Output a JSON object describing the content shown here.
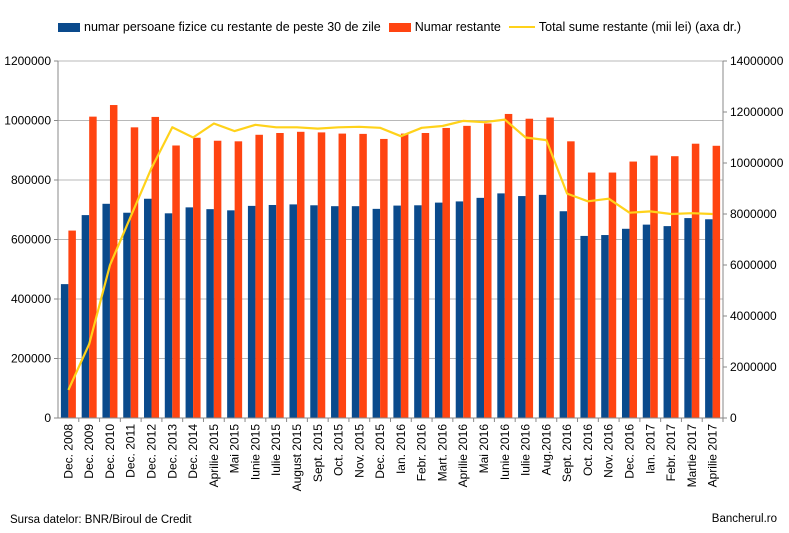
{
  "legend": {
    "series1": "numar persoane fizice cu restante de peste 30 de zile",
    "series2": "Numar restante",
    "series3": "Total sume restante (mii lei) (axa dr.)"
  },
  "footer": {
    "source": "Sursa datelor: BNR/Biroul de Credit",
    "brand": "Bancherul.ro"
  },
  "colors": {
    "series1": "#0a4a8c",
    "series2": "#ff4411",
    "series3": "#ffd21a",
    "grid": "#b8b8b8"
  },
  "chart_data": {
    "type": "bar",
    "grid": true,
    "legend_position": "top",
    "categories": [
      "Dec. 2008",
      "Dec. 2009",
      "Dec. 2010",
      "Dec. 2011",
      "Dec. 2012",
      "Dec. 2013",
      "Dec. 2014",
      "Aprilie 2015",
      "Mai 2015",
      "Iunie 2015",
      "Iulie 2015",
      "August 2015",
      "Sept. 2015",
      "Oct. 2015",
      "Nov. 2015",
      "Dec. 2015",
      "Ian. 2016",
      "Febr. 2016",
      "Mart. 2016",
      "Aprilie 2016",
      "Mai 2016",
      "Iunie 2016",
      "Iulie 2016",
      "Aug.2016",
      "Sept. 2016",
      "Oct. 2016",
      "Nov. 2016",
      "Dec. 2016",
      "Ian. 2017",
      "Febr. 2017",
      "Martie 2017",
      "Aprilie 2017"
    ],
    "ylim_left": [
      0,
      1200000
    ],
    "yticks_left": [
      0,
      200000,
      400000,
      600000,
      800000,
      1000000,
      1200000
    ],
    "ylim_right": [
      0,
      14000000
    ],
    "yticks_right": [
      0,
      2000000,
      4000000,
      6000000,
      8000000,
      10000000,
      12000000,
      14000000
    ],
    "series": [
      {
        "name": "numar persoane fizice cu restante de peste 30 de zile",
        "type": "bar",
        "axis": "left",
        "values": [
          450000,
          682000,
          720000,
          690000,
          737000,
          688000,
          708000,
          702000,
          698000,
          713000,
          716000,
          718000,
          715000,
          712000,
          712000,
          703000,
          714000,
          715000,
          724000,
          728000,
          740000,
          755000,
          746000,
          750000,
          695000,
          612000,
          615000,
          636000,
          650000,
          645000,
          672000,
          668000
        ]
      },
      {
        "name": "Numar restante",
        "type": "bar",
        "axis": "left",
        "values": [
          630000,
          1013000,
          1052000,
          977000,
          1012000,
          916000,
          942000,
          932000,
          930000,
          952000,
          958000,
          962000,
          960000,
          956000,
          955000,
          938000,
          956000,
          958000,
          975000,
          982000,
          990000,
          1022000,
          1006000,
          1010000,
          930000,
          825000,
          825000,
          862000,
          882000,
          880000,
          922000,
          915000
        ]
      },
      {
        "name": "Total sume restante (mii lei) (axa dr.)",
        "type": "line",
        "axis": "right",
        "values": [
          1100000,
          2900000,
          6000000,
          7900000,
          9800000,
          11400000,
          11000000,
          11550000,
          11250000,
          11500000,
          11400000,
          11400000,
          11350000,
          11400000,
          11420000,
          11380000,
          11050000,
          11380000,
          11450000,
          11650000,
          11600000,
          11700000,
          11000000,
          10900000,
          8800000,
          8500000,
          8600000,
          8050000,
          8100000,
          8000000,
          8030000,
          8000000
        ]
      }
    ]
  }
}
